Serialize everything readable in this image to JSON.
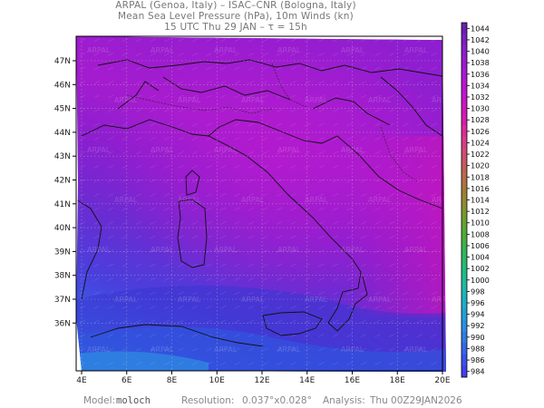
{
  "header": {
    "line1": "ARPAL (Genoa, Italy)  –  ISAC–CNR (Bologna, Italy)",
    "line2": "Mean Sea Level Pressure (hPa), 10m Winds (kn)",
    "line3": "15 UTC Thu 29 JAN  –  τ = 15h"
  },
  "map": {
    "lon_labels": [
      "4E",
      "6E",
      "8E",
      "10E",
      "12E",
      "14E",
      "16E",
      "18E",
      "20E"
    ],
    "lat_labels": [
      "47N",
      "46N",
      "45N",
      "44N",
      "43N",
      "42N",
      "41N",
      "40N",
      "39N",
      "38N",
      "37N",
      "36N"
    ],
    "watermark": "ARPAL"
  },
  "colorbar": {
    "levels": [
      "1044",
      "1042",
      "1040",
      "1038",
      "1036",
      "1034",
      "1032",
      "1030",
      "1028",
      "1026",
      "1024",
      "1022",
      "1020",
      "1018",
      "1016",
      "1014",
      "1012",
      "1010",
      "1008",
      "1006",
      "1004",
      "1002",
      "1000",
      "998",
      "996",
      "994",
      "992",
      "990",
      "988",
      "986",
      "984"
    ],
    "colors": [
      "#6a1fb0",
      "#7b1fc0",
      "#8b1dcd",
      "#9a1ad3",
      "#aa18d6",
      "#b816d2",
      "#c415ca",
      "#cf16bd",
      "#d81aad",
      "#dc2a9b",
      "#d83c86",
      "#cf4d70",
      "#c55b5b",
      "#b96a48",
      "#a8783a",
      "#958734",
      "#7f9530",
      "#67a12f",
      "#4faa3a",
      "#3bb24d",
      "#2cb863",
      "#22bb7c",
      "#1fbb96",
      "#1db6b0",
      "#1caec8",
      "#21a1d8",
      "#2a8fe0",
      "#2f7be6",
      "#3566ea",
      "#3a52ec",
      "#4040ec"
    ]
  },
  "footer": {
    "model_label": "Model:",
    "model_value": "moloch",
    "resolution_label": "Resolution:",
    "resolution_value": "0.037°x0.028°",
    "analysis_label": "Analysis:",
    "analysis_value": "Thu 00Z29JAN2026"
  }
}
